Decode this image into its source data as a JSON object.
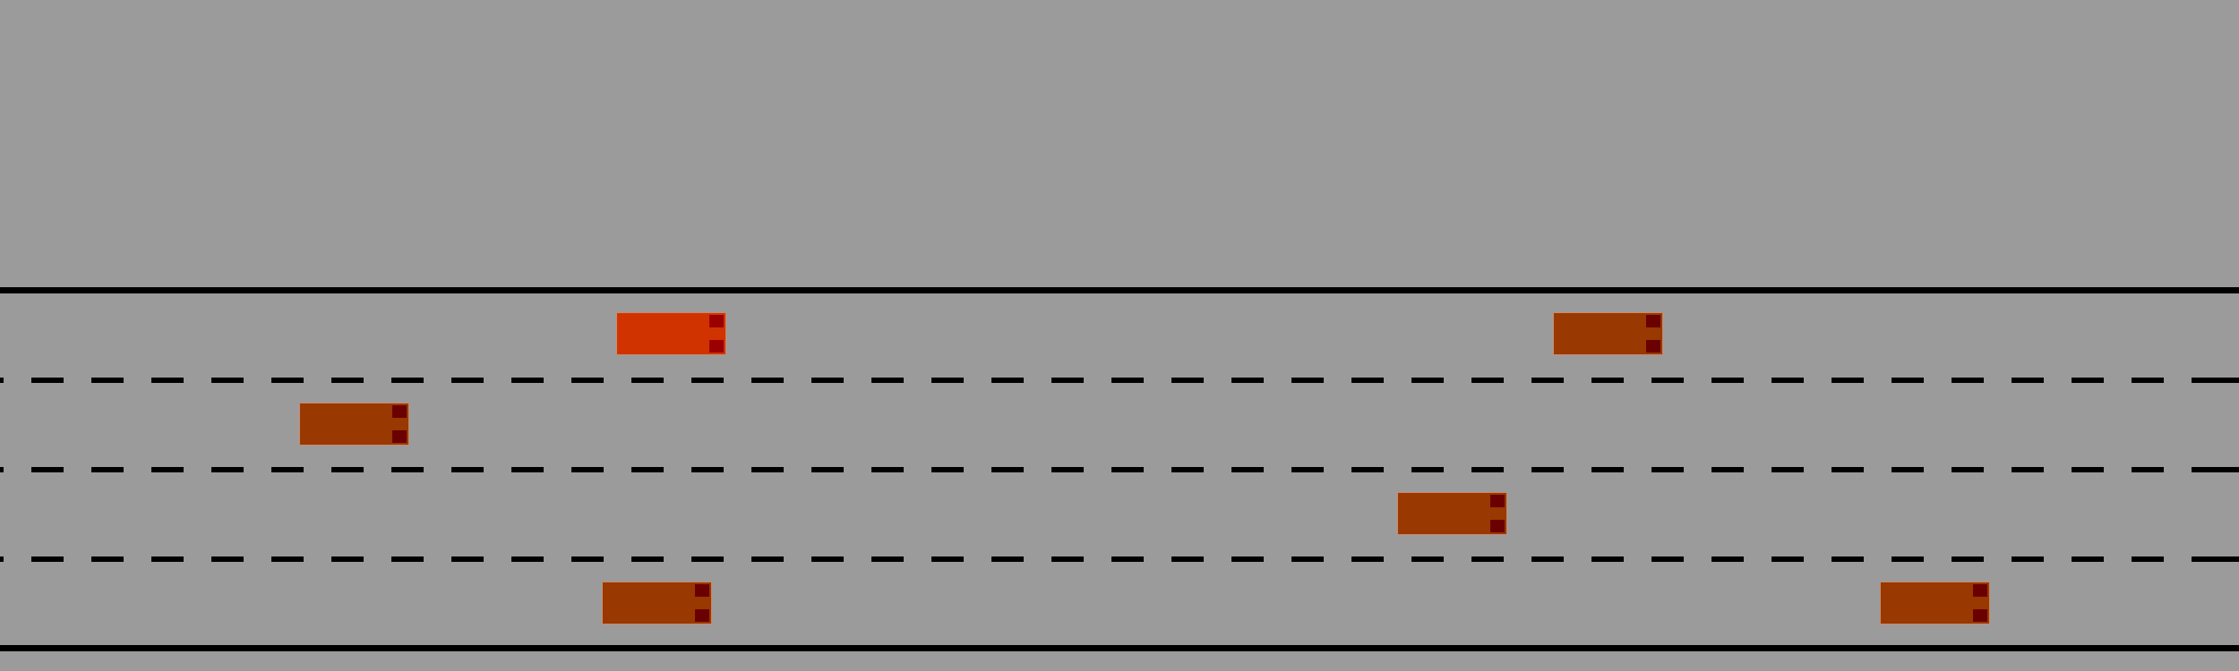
{
  "scene": {
    "type": "highway-lane-driving",
    "lanes": 4,
    "road_color": "#9b9b9b",
    "line_color": "#000000"
  },
  "vehicles": [
    {
      "role": "ego",
      "lane": 1,
      "color": "#d13300",
      "light_color": "#9a0000"
    },
    {
      "role": "traffic",
      "lane": 1,
      "color": "#993800",
      "light_color": "#6b0000"
    },
    {
      "role": "traffic",
      "lane": 2,
      "color": "#993800",
      "light_color": "#6b0000"
    },
    {
      "role": "traffic",
      "lane": 3,
      "color": "#993800",
      "light_color": "#6b0000"
    },
    {
      "role": "traffic",
      "lane": 4,
      "color": "#993800",
      "light_color": "#6b0000"
    },
    {
      "role": "traffic",
      "lane": 4,
      "color": "#993800",
      "light_color": "#6b0000"
    }
  ]
}
